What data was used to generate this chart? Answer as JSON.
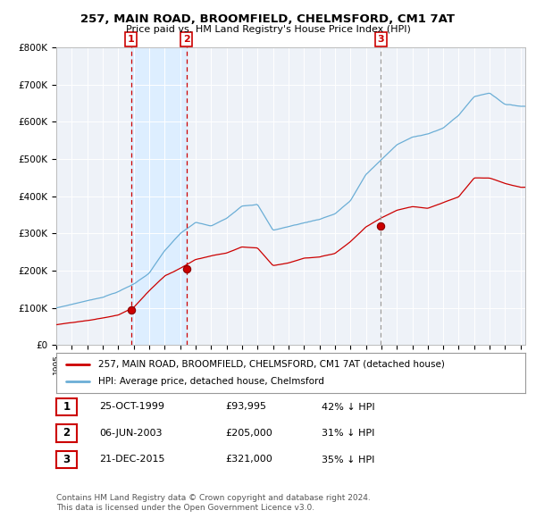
{
  "title": "257, MAIN ROAD, BROOMFIELD, CHELMSFORD, CM1 7AT",
  "subtitle": "Price paid vs. HM Land Registry's House Price Index (HPI)",
  "ylim": [
    0,
    800000
  ],
  "yticks": [
    0,
    100000,
    200000,
    300000,
    400000,
    500000,
    600000,
    700000,
    800000
  ],
  "ytick_labels": [
    "£0",
    "£100K",
    "£200K",
    "£300K",
    "£400K",
    "£500K",
    "£600K",
    "£700K",
    "£800K"
  ],
  "sale_year_floats": [
    1999.833,
    2003.417,
    2015.958
  ],
  "sale_prices": [
    93995,
    205000,
    321000
  ],
  "sale_labels": [
    "1",
    "2",
    "3"
  ],
  "hpi_color": "#6baed6",
  "price_color": "#cc0000",
  "vline_color_12": "#cc0000",
  "vline_color_3": "#999999",
  "shade_color": "#ddeeff",
  "legend_line1": "257, MAIN ROAD, BROOMFIELD, CHELMSFORD, CM1 7AT (detached house)",
  "legend_line2": "HPI: Average price, detached house, Chelmsford",
  "table_entries": [
    {
      "num": "1",
      "date": "25-OCT-1999",
      "price": "£93,995",
      "hpi": "42% ↓ HPI"
    },
    {
      "num": "2",
      "date": "06-JUN-2003",
      "price": "£205,000",
      "hpi": "31% ↓ HPI"
    },
    {
      "num": "3",
      "date": "21-DEC-2015",
      "price": "£321,000",
      "hpi": "35% ↓ HPI"
    }
  ],
  "footnote1": "Contains HM Land Registry data © Crown copyright and database right 2024.",
  "footnote2": "This data is licensed under the Open Government Licence v3.0.",
  "background_color": "#ffffff",
  "plot_bg_color": "#eef2f8",
  "hpi_keypoints_years": [
    1995,
    1996,
    1997,
    1998,
    1999,
    2000,
    2001,
    2002,
    2003,
    2004,
    2005,
    2006,
    2007,
    2008,
    2009,
    2010,
    2011,
    2012,
    2013,
    2014,
    2015,
    2016,
    2017,
    2018,
    2019,
    2020,
    2021,
    2022,
    2023,
    2024,
    2025
  ],
  "hpi_keypoints_vals": [
    100,
    110,
    120,
    130,
    145,
    165,
    195,
    255,
    300,
    330,
    320,
    340,
    375,
    380,
    310,
    320,
    330,
    340,
    355,
    390,
    460,
    500,
    540,
    560,
    570,
    585,
    620,
    670,
    680,
    650,
    645
  ],
  "price_keypoints_years": [
    1995,
    1996,
    1997,
    1998,
    1999,
    2000,
    2001,
    2002,
    2003,
    2004,
    2005,
    2006,
    2007,
    2008,
    2009,
    2010,
    2011,
    2012,
    2013,
    2014,
    2015,
    2016,
    2017,
    2018,
    2019,
    2020,
    2021,
    2022,
    2023,
    2024,
    2025
  ],
  "price_keypoints_vals": [
    55,
    60,
    65,
    72,
    80,
    100,
    145,
    185,
    205,
    230,
    240,
    248,
    265,
    262,
    215,
    222,
    235,
    238,
    248,
    280,
    320,
    345,
    365,
    375,
    370,
    385,
    400,
    450,
    450,
    435,
    425
  ]
}
